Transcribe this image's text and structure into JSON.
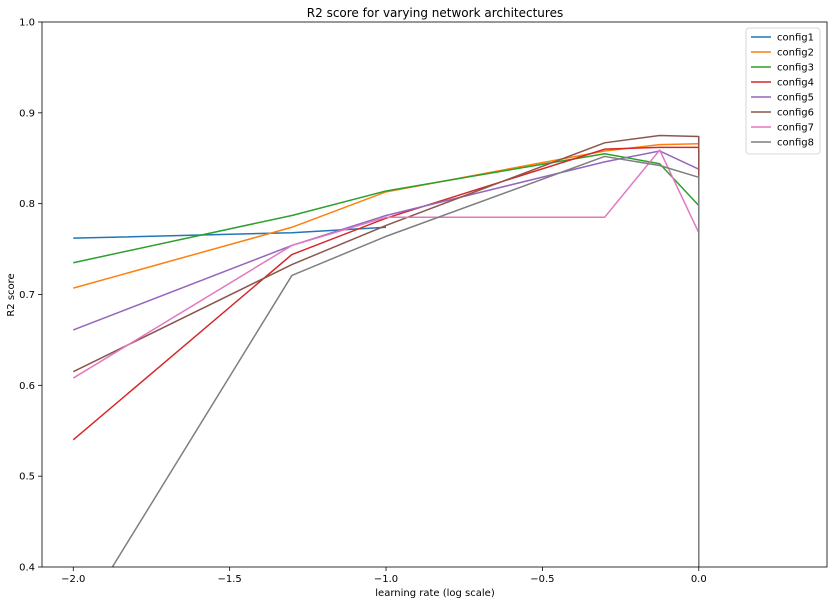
{
  "chart_data": {
    "type": "line",
    "title": "R2 score for varying network architectures",
    "xlabel": "learning rate (log scale)",
    "ylabel": "R2 score",
    "xlim": [
      -2.1,
      0.41
    ],
    "ylim": [
      0.4,
      1.0
    ],
    "x_ticks": [
      -2.0,
      -1.5,
      -1.0,
      -0.5,
      0.0
    ],
    "x_tick_labels": [
      "−2.0",
      "−1.5",
      "−1.0",
      "−0.5",
      "0.0"
    ],
    "y_ticks": [
      0.4,
      0.5,
      0.6,
      0.7,
      0.8,
      0.9,
      1.0
    ],
    "y_tick_labels": [
      "0.4",
      "0.5",
      "0.6",
      "0.7",
      "0.8",
      "0.9",
      "1.0"
    ],
    "grid": false,
    "legend_position": "top-right",
    "series": [
      {
        "name": "config1",
        "color": "#1f77b4",
        "points": [
          [
            -2.0,
            0.762
          ],
          [
            -1.301,
            0.768
          ],
          [
            -1.0,
            0.774
          ]
        ]
      },
      {
        "name": "config2",
        "color": "#ff7f0e",
        "points": [
          [
            -2.0,
            0.707
          ],
          [
            -1.301,
            0.774
          ],
          [
            -1.0,
            0.813
          ],
          [
            -0.301,
            0.858
          ],
          [
            -0.125,
            0.865
          ],
          [
            0.0,
            0.866
          ]
        ]
      },
      {
        "name": "config3",
        "color": "#2ca02c",
        "points": [
          [
            -2.0,
            0.735
          ],
          [
            -1.301,
            0.787
          ],
          [
            -1.0,
            0.814
          ],
          [
            -0.301,
            0.855
          ],
          [
            -0.125,
            0.844
          ],
          [
            0.0,
            0.798
          ]
        ]
      },
      {
        "name": "config4",
        "color": "#d62728",
        "points": [
          [
            -2.0,
            0.54
          ],
          [
            -1.301,
            0.744
          ],
          [
            -1.0,
            0.784
          ],
          [
            -0.301,
            0.86
          ],
          [
            -0.125,
            0.862
          ],
          [
            0.0,
            0.862
          ],
          [
            0.0,
            0.835
          ]
        ]
      },
      {
        "name": "config5",
        "color": "#9467bd",
        "points": [
          [
            -2.0,
            0.661
          ],
          [
            -1.301,
            0.754
          ],
          [
            -1.0,
            0.787
          ],
          [
            -0.301,
            0.846
          ],
          [
            -0.125,
            0.858
          ],
          [
            0.0,
            0.838
          ]
        ]
      },
      {
        "name": "config6",
        "color": "#8c564b",
        "points": [
          [
            -2.0,
            0.615
          ],
          [
            -1.301,
            0.733
          ],
          [
            -1.0,
            0.776
          ],
          [
            -0.301,
            0.867
          ],
          [
            -0.125,
            0.875
          ],
          [
            0.0,
            0.874
          ],
          [
            0.0,
            0.4
          ]
        ]
      },
      {
        "name": "config7",
        "color": "#e377c2",
        "points": [
          [
            -2.0,
            0.608
          ],
          [
            -1.301,
            0.754
          ],
          [
            -1.0,
            0.785
          ],
          [
            -0.301,
            0.785
          ],
          [
            -0.125,
            0.859
          ],
          [
            0.0,
            0.768
          ]
        ]
      },
      {
        "name": "config8",
        "color": "#7f7f7f",
        "points": [
          [
            -1.875,
            0.4
          ],
          [
            -1.301,
            0.721
          ],
          [
            -1.0,
            0.764
          ],
          [
            -0.301,
            0.852
          ],
          [
            -0.125,
            0.842
          ],
          [
            0.0,
            0.829
          ],
          [
            0.0,
            0.4
          ]
        ]
      }
    ]
  }
}
